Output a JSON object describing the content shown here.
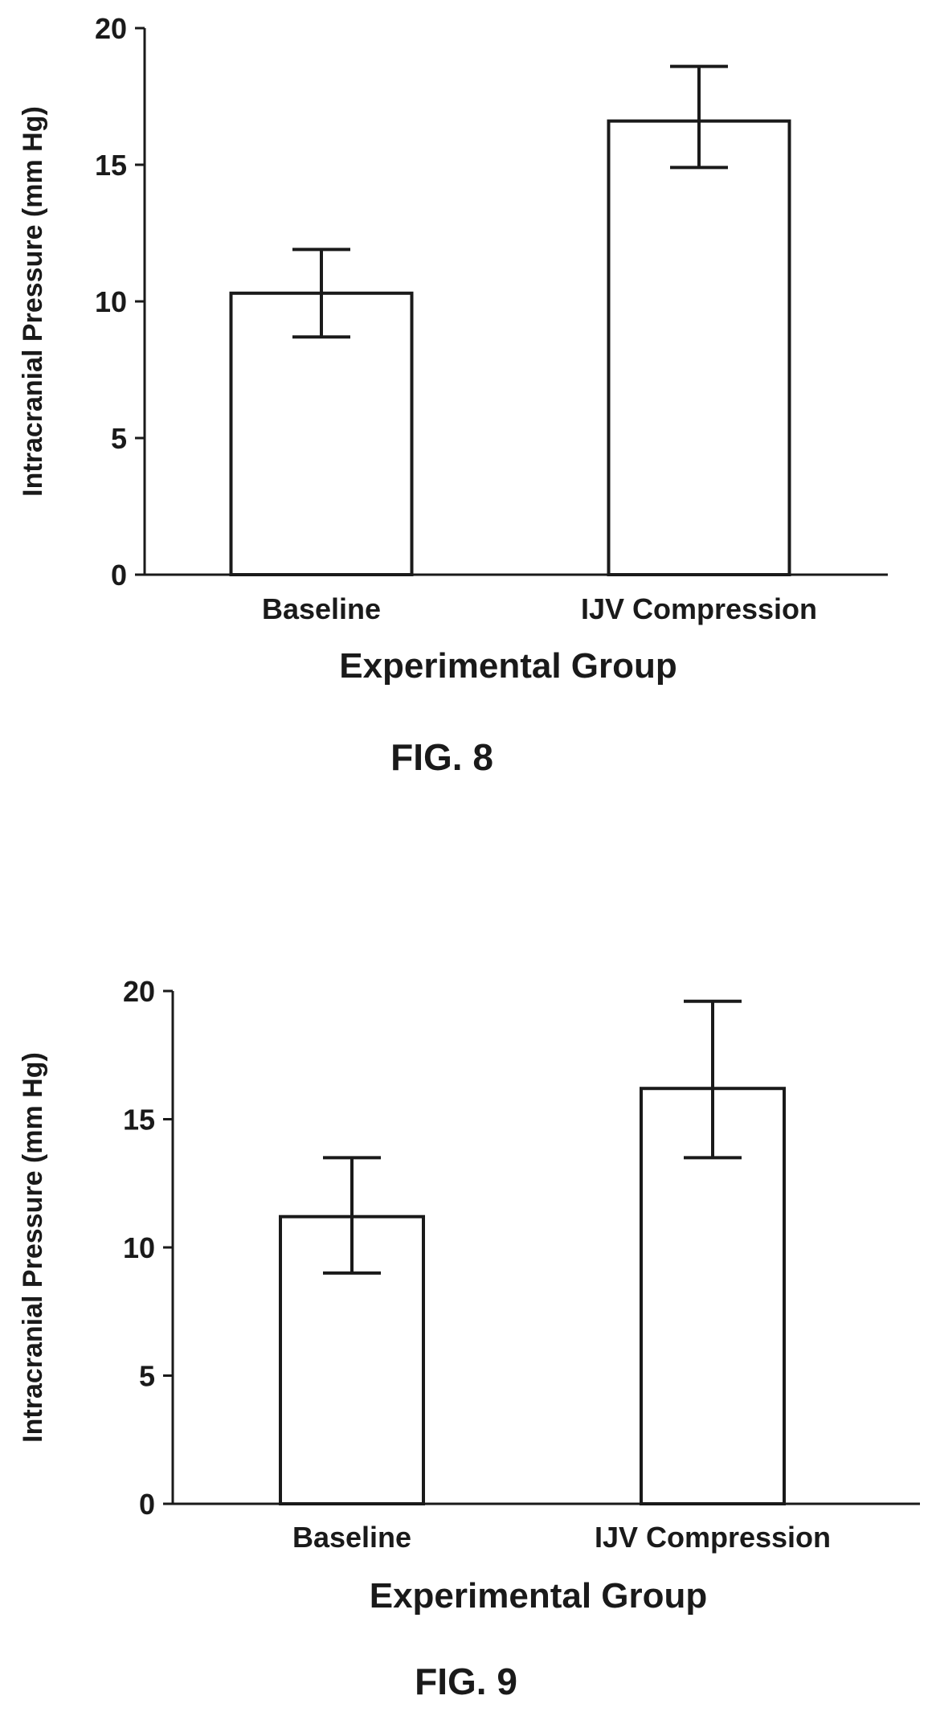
{
  "chart_data": [
    {
      "type": "bar",
      "figure_label": "FIG. 8",
      "categories": [
        "Baseline",
        "IJV Compression"
      ],
      "values": [
        10.3,
        16.6
      ],
      "error_low": [
        8.7,
        14.9
      ],
      "error_high": [
        11.9,
        18.6
      ],
      "xlabel": "Experimental Group",
      "ylabel": "Intracranial Pressure (mm Hg)",
      "ylim": [
        0,
        20
      ],
      "yticks": [
        "0",
        "5",
        "10",
        "15",
        "20"
      ],
      "grid": false,
      "legend": "none"
    },
    {
      "type": "bar",
      "figure_label": "FIG. 9",
      "categories": [
        "Baseline",
        "IJV Compression"
      ],
      "values": [
        11.2,
        16.2
      ],
      "error_low": [
        9.0,
        13.5
      ],
      "error_high": [
        13.5,
        19.6
      ],
      "xlabel": "Experimental Group",
      "ylabel": "Intracranial Pressure (mm Hg)",
      "ylim": [
        0,
        20
      ],
      "yticks": [
        "0",
        "5",
        "10",
        "15",
        "20"
      ],
      "grid": false,
      "legend": "none"
    }
  ]
}
